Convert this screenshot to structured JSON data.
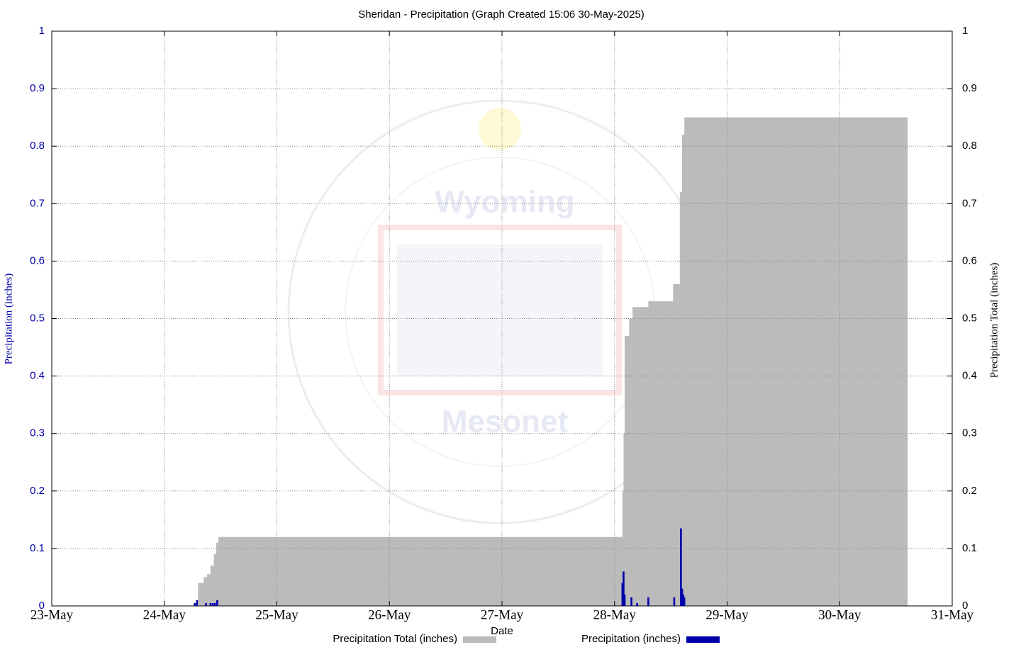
{
  "chart_data": {
    "type": "precipitation",
    "title": "Sheridan - Precipitation (Graph Created 15:06 30-May-2025)",
    "x_label": "Date",
    "y_label": "Precipitation (inches)",
    "y2_label": "Precipitation Total (inches)",
    "annotations": [
      "Wyoming",
      "Mesonet"
    ],
    "xlim": [
      23,
      31
    ],
    "xticks": [
      {
        "value": 23,
        "label": "23-May"
      },
      {
        "value": 24,
        "label": "24-May"
      },
      {
        "value": 25,
        "label": "25-May"
      },
      {
        "value": 26,
        "label": "26-May"
      },
      {
        "value": 27,
        "label": "27-May"
      },
      {
        "value": 28,
        "label": "28-May"
      },
      {
        "value": 29,
        "label": "29-May"
      },
      {
        "value": 30,
        "label": "30-May"
      },
      {
        "value": 31,
        "label": "31-May"
      }
    ],
    "ylim": [
      0,
      1
    ],
    "yticks": [
      0,
      0.1,
      0.2,
      0.3,
      0.4,
      0.5,
      0.6,
      0.7,
      0.8,
      0.9,
      1
    ],
    "y2lim": [
      0,
      1
    ],
    "y2ticks": [
      0,
      0.1,
      0.2,
      0.3,
      0.4,
      0.5,
      0.6,
      0.7,
      0.8,
      0.9,
      1
    ],
    "grid": true,
    "series": [
      {
        "name": "Precipitation Total (inches)",
        "color": "#bbbbbb",
        "axis": "y2",
        "kind": "step-area",
        "x": [
          23,
          24.28,
          24.3,
          24.35,
          24.38,
          24.41,
          24.44,
          24.46,
          24.48,
          28.07,
          28.08,
          28.09,
          28.13,
          28.16,
          28.3,
          28.52,
          28.58,
          28.6,
          28.62,
          30.6
        ],
        "values": [
          0,
          0,
          0.01,
          0.04,
          0.05,
          0.055,
          0.07,
          0.09,
          0.11,
          0.12,
          0.2,
          0.3,
          0.47,
          0.5,
          0.52,
          0.53,
          0.56,
          0.72,
          0.82,
          0.85
        ]
      },
      {
        "name": "Precipitation (inches)",
        "color": "#0000aa",
        "axis": "y",
        "kind": "bar",
        "x": [
          24.27,
          24.29,
          24.37,
          24.41,
          24.43,
          24.45,
          24.47,
          28.07,
          28.08,
          28.09,
          28.15,
          28.2,
          28.3,
          28.53,
          28.59,
          28.6,
          28.61,
          28.62
        ],
        "values": [
          0.005,
          0.01,
          0.005,
          0.005,
          0.005,
          0.005,
          0.01,
          0.04,
          0.06,
          0.02,
          0.015,
          0.005,
          0.015,
          0.015,
          0.135,
          0.03,
          0.02,
          0.015
        ]
      }
    ]
  }
}
